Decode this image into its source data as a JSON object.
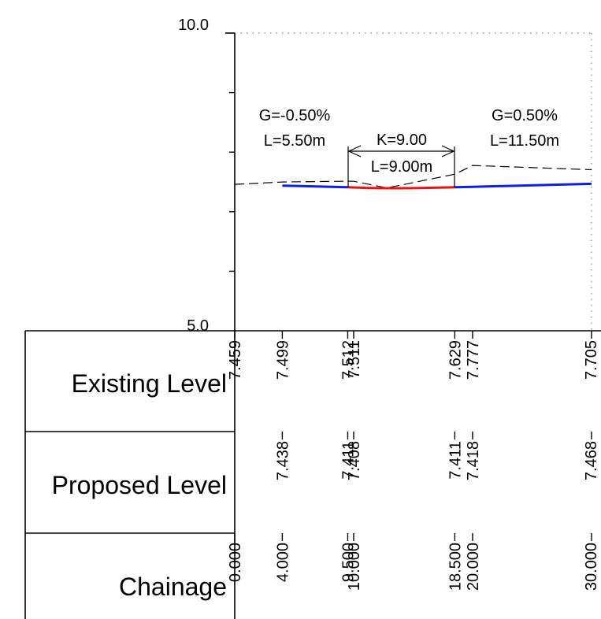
{
  "axis": {
    "ymin_label": "5.0",
    "ymax_label": "10.0",
    "ymin": 5.0,
    "ymax": 10.0,
    "y_minor_ticks": [
      6.0,
      7.0,
      8.0,
      9.0
    ],
    "x_range": [
      0,
      30
    ]
  },
  "annotations": {
    "grade_left": "G=-0.50%",
    "length_left": "L=5.50m",
    "k_value": "K=9.00",
    "curve_length": "L=9.00m",
    "grade_right": "G=0.50%",
    "length_right": "L=11.50m"
  },
  "table": {
    "rows": [
      {
        "label": "Existing Level"
      },
      {
        "label": "Proposed Level"
      },
      {
        "label": "Chainage"
      }
    ],
    "stations": [
      {
        "chainage": "0.000",
        "x": 0,
        "existing": "7.459",
        "proposed": ""
      },
      {
        "chainage": "4.000",
        "x": 4,
        "existing": "7.499",
        "proposed": "7.438"
      },
      {
        "chainage": "9.500",
        "x": 9.5,
        "existing": "7.512",
        "proposed": "7.411"
      },
      {
        "chainage": "10.000",
        "x": 10,
        "existing": "7.511",
        "proposed": "7.408"
      },
      {
        "chainage": "18.500",
        "x": 18.5,
        "existing": "7.629",
        "proposed": "7.411"
      },
      {
        "chainage": "20.000",
        "x": 20,
        "existing": "7.777",
        "proposed": "7.418"
      },
      {
        "chainage": "30.000",
        "x": 30,
        "existing": "7.705",
        "proposed": "7.468"
      }
    ]
  },
  "profile": {
    "existing_ground": [
      [
        0,
        7.459
      ],
      [
        4,
        7.499
      ],
      [
        9.5,
        7.512
      ],
      [
        10,
        7.511
      ],
      [
        12.8,
        7.4
      ],
      [
        18.5,
        7.629
      ],
      [
        20,
        7.777
      ],
      [
        30,
        7.705
      ]
    ],
    "proposed_left": [
      [
        4,
        7.438
      ],
      [
        9.5,
        7.411
      ]
    ],
    "vertical_curve": [
      [
        9.5,
        7.411
      ],
      [
        10,
        7.408
      ],
      [
        11,
        7.4
      ],
      [
        12,
        7.396
      ],
      [
        13,
        7.394
      ],
      [
        14,
        7.394
      ],
      [
        15,
        7.396
      ],
      [
        16,
        7.4
      ],
      [
        17,
        7.403
      ],
      [
        18,
        7.408
      ],
      [
        18.5,
        7.411
      ]
    ],
    "proposed_right": [
      [
        18.5,
        7.411
      ],
      [
        20,
        7.418
      ],
      [
        30,
        7.468
      ]
    ],
    "colors": {
      "proposed": "#0b1fe6",
      "curve": "#ee1111",
      "existing": "#000000"
    }
  }
}
